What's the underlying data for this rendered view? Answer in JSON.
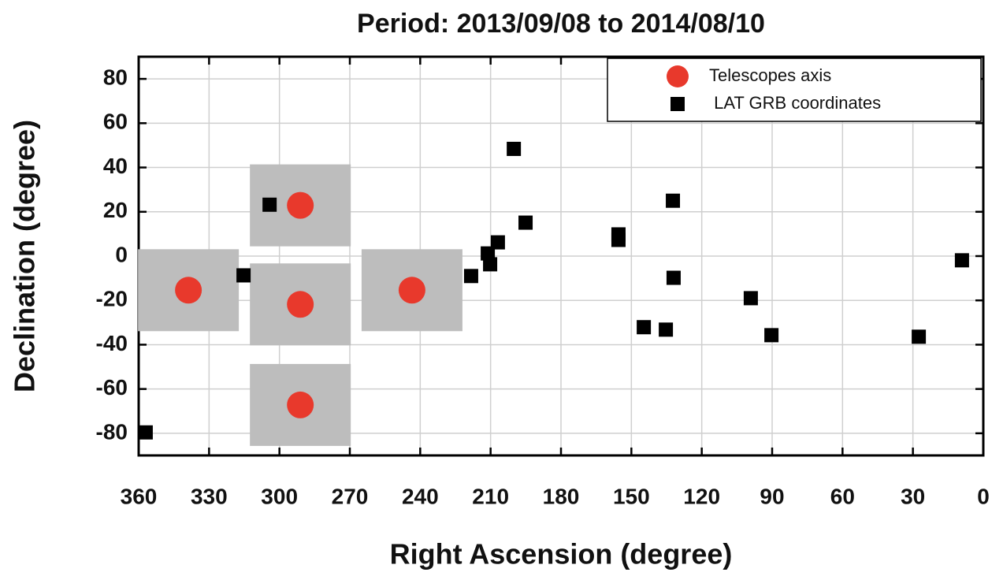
{
  "chart_data": {
    "type": "scatter",
    "title": "Period: 2013/09/08 to 2014/08/10",
    "x_label": "Right Ascension (degree)",
    "y_label": "Declination (degree)",
    "xlim": [
      360,
      0
    ],
    "ylim": [
      -90,
      90
    ],
    "xticks": [
      360,
      330,
      300,
      270,
      240,
      210,
      180,
      150,
      120,
      90,
      60,
      30,
      0
    ],
    "yticks": [
      -80,
      -60,
      -40,
      -20,
      0,
      20,
      40,
      60,
      80
    ],
    "grid": true,
    "legend": "upper right",
    "series": [
      {
        "name": "Telescopes axis",
        "color": "#e8392c",
        "marker": "circle",
        "x": [
          338.8,
          291.1,
          291.1,
          291.1,
          243.5
        ],
        "values": [
          -15.4,
          22.9,
          -21.8,
          -67.2,
          -15.4
        ]
      },
      {
        "name": " LAT GRB coordinates",
        "color": "#000000",
        "marker": "square",
        "x": [
          357,
          304.2,
          315.3,
          218.3,
          211.2,
          210.2,
          206.9,
          200.1,
          195.1,
          155.5,
          155.5,
          144.7,
          135.3,
          132.3,
          132,
          99.1,
          90.3,
          27.5,
          9.1
        ],
        "values": [
          -79.6,
          23.2,
          -8.7,
          -9,
          1.2,
          -3.7,
          6.2,
          48.4,
          15.1,
          9.8,
          7.3,
          -32.1,
          -33.2,
          25,
          -9.8,
          -19,
          -35.7,
          -36.4,
          -1.9
        ]
      }
    ]
  }
}
